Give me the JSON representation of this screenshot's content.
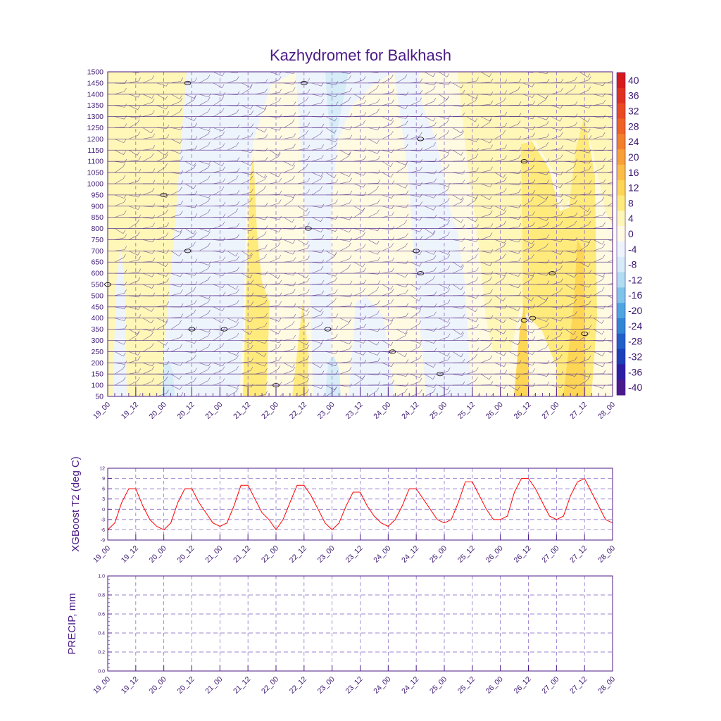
{
  "chart_data": [
    {
      "type": "heatmap",
      "title": "Kazhydromet for Balkhash",
      "ylabel": "",
      "y_ticks": [
        1500,
        1450,
        1400,
        1350,
        1300,
        1250,
        1200,
        1150,
        1100,
        1050,
        1000,
        950,
        900,
        850,
        800,
        750,
        700,
        650,
        600,
        550,
        500,
        450,
        400,
        350,
        300,
        250,
        200,
        150,
        100,
        50
      ],
      "x_ticks": [
        "19_00",
        "19_12",
        "20_00",
        "20_12",
        "21_00",
        "21_12",
        "22_00",
        "22_12",
        "23_00",
        "23_12",
        "24_00",
        "24_12",
        "25_00",
        "25_12",
        "26_00",
        "26_12",
        "27_00",
        "27_12",
        "28_00"
      ],
      "colorbar": {
        "labels": [
          "40",
          "36",
          "32",
          "28",
          "24",
          "20",
          "16",
          "12",
          "8",
          "4",
          "0",
          "-4",
          "-8",
          "-12",
          "-16",
          "-20",
          "-24",
          "-28",
          "-32",
          "-36",
          "-40"
        ],
        "colors": [
          "#d7191c",
          "#e0301e",
          "#ea4a20",
          "#f06222",
          "#f47f2a",
          "#f8a035",
          "#fbbd45",
          "#fdd655",
          "#feeb7c",
          "#fef7b8",
          "#fffbe2",
          "#eef4fb",
          "#d6ecf7",
          "#b2dcf1",
          "#7fc4ea",
          "#4ea6e0",
          "#2f86d5",
          "#1f5fc7",
          "#1a3fb8",
          "#2a1ea3",
          "#4a1a8c"
        ]
      },
      "contour_labels": [
        {
          "text": "0",
          "x": "20_12",
          "y": 1450
        },
        {
          "text": "0",
          "x": "22_12",
          "y": 1450
        },
        {
          "text": "0",
          "x": "24_12",
          "y": 1200
        },
        {
          "text": "00",
          "x": "26_12",
          "y": 1100
        },
        {
          "text": "0",
          "x": "20_00",
          "y": 950
        },
        {
          "text": "0",
          "x": "22_12",
          "y": 800
        },
        {
          "text": "0",
          "x": "20_12",
          "y": 700
        },
        {
          "text": "0",
          "x": "24_12",
          "y": 700
        },
        {
          "text": "0",
          "x": "24_12",
          "y": 600
        },
        {
          "text": "00",
          "x": "27_00",
          "y": 600
        },
        {
          "text": "0",
          "x": "19_00",
          "y": 550
        },
        {
          "text": "00",
          "x": "26_12",
          "y": 400
        },
        {
          "text": "00",
          "x": "26_12",
          "y": 390
        },
        {
          "text": "0",
          "x": "20_12",
          "y": 350
        },
        {
          "text": "0",
          "x": "21_00",
          "y": 350
        },
        {
          "text": "0",
          "x": "23_00",
          "y": 350
        },
        {
          "text": "8",
          "x": "27_12",
          "y": 330
        },
        {
          "text": "0",
          "x": "24_00",
          "y": 250
        },
        {
          "text": "0",
          "x": "25_00",
          "y": 150
        },
        {
          "text": "0",
          "x": "22_00",
          "y": 100
        }
      ]
    },
    {
      "type": "line",
      "ylabel": "XGBoost T2 (deg C)",
      "ylim": [
        -9,
        12
      ],
      "y_ticks": [
        "12",
        "9",
        "6",
        "3",
        "0",
        "-3",
        "-6",
        "-9"
      ],
      "x_ticks": [
        "19_00",
        "19_12",
        "20_00",
        "20_12",
        "21_00",
        "21_12",
        "22_00",
        "22_12",
        "23_00",
        "23_12",
        "24_00",
        "24_12",
        "25_00",
        "25_12",
        "26_00",
        "26_12",
        "27_00",
        "27_12",
        "28_00"
      ],
      "series": [
        {
          "name": "T2",
          "color": "#ff0000",
          "x": [
            0,
            1,
            2,
            3,
            4,
            5,
            6,
            7,
            8,
            9,
            10,
            11,
            12,
            13,
            14,
            15,
            16,
            17,
            18,
            19,
            20,
            21,
            22,
            23,
            24,
            25,
            26,
            27,
            28,
            29,
            30,
            31,
            32,
            33,
            34,
            35,
            36,
            37,
            38,
            39,
            40,
            41,
            42,
            43,
            44,
            45,
            46,
            47,
            48,
            49,
            50,
            51,
            52,
            53,
            54,
            55,
            56,
            57,
            58,
            59,
            60,
            61,
            62,
            63,
            64,
            65,
            66,
            67,
            68,
            69,
            70,
            71,
            72
          ],
          "values": [
            -6,
            -4,
            2,
            6,
            6,
            1,
            -3,
            -5,
            -6,
            -4,
            2,
            6,
            6,
            2,
            -1,
            -4,
            -5,
            -4,
            1,
            7,
            7,
            3,
            -1,
            -3,
            -6,
            -3,
            2,
            7,
            7,
            4,
            0,
            -4,
            -6,
            -4,
            1,
            5,
            5,
            1,
            -2,
            -4,
            -5,
            -3,
            1,
            6,
            6,
            3,
            0,
            -3,
            -4,
            -3,
            2,
            8,
            8,
            4,
            0,
            -3,
            -3,
            -2,
            5,
            9,
            9,
            6,
            2,
            -2,
            -3,
            -2,
            4,
            8,
            9,
            5,
            1,
            -3,
            -4
          ]
        }
      ]
    },
    {
      "type": "line",
      "ylabel": "PRECIP, mm",
      "ylim": [
        0,
        1
      ],
      "y_ticks": [
        "1.0",
        "0.8",
        "0.6",
        "0.4",
        "0.2",
        "0.0"
      ],
      "x_ticks": [
        "19_00",
        "19_12",
        "20_00",
        "20_12",
        "21_00",
        "21_12",
        "22_00",
        "22_12",
        "23_00",
        "23_12",
        "24_00",
        "24_12",
        "25_00",
        "25_12",
        "26_00",
        "26_12",
        "27_00",
        "27_12",
        "28_00"
      ],
      "series": []
    }
  ]
}
